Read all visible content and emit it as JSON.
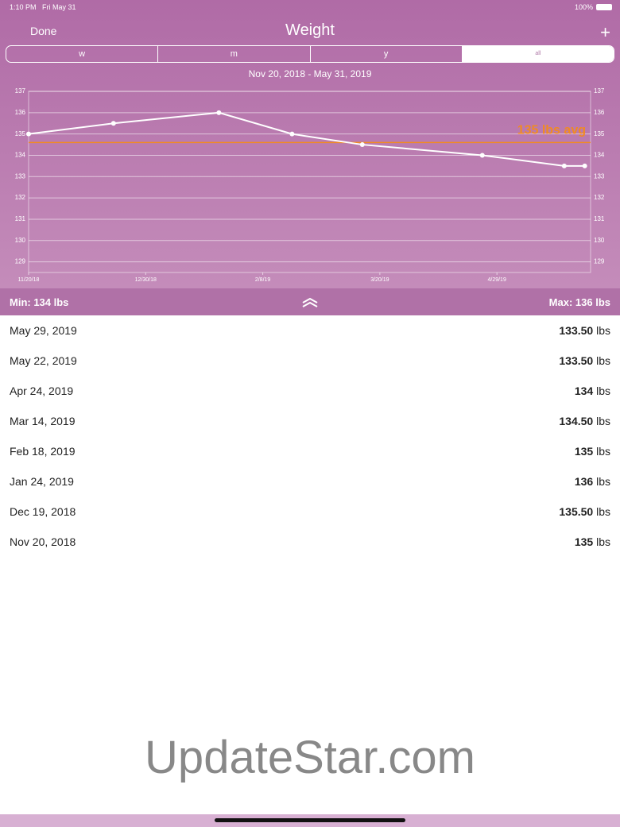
{
  "status_bar": {
    "time": "1:10 PM",
    "date": "Fri May 31",
    "battery": "100%"
  },
  "nav": {
    "left": "Done",
    "title": "Weight",
    "right": "+"
  },
  "segments": [
    "w",
    "m",
    "y",
    "all"
  ],
  "date_range": "Nov 20, 2018 - May 31, 2019",
  "chart_data": {
    "type": "line",
    "x": [
      "2018-11-20",
      "2018-12-19",
      "2019-01-24",
      "2019-02-18",
      "2019-03-14",
      "2019-04-24",
      "2019-05-22",
      "2019-05-29"
    ],
    "series": [
      {
        "color": "#ffffff",
        "values": [
          135,
          135.5,
          136,
          135,
          134.5,
          134,
          133.5,
          133.5
        ]
      }
    ],
    "xlim": [
      "2018-11-20",
      "2019-05-31"
    ],
    "xticks": [
      {
        "value": "2018-11-20",
        "label": "11/20/18"
      },
      {
        "value": "2018-12-30",
        "label": "12/30/18"
      },
      {
        "value": "2019-02-08",
        "label": "2/8/19"
      },
      {
        "value": "2019-03-20",
        "label": "3/20/19"
      },
      {
        "value": "2019-04-29",
        "label": "4/29/19"
      }
    ],
    "ylim": [
      128.5,
      137
    ],
    "yticks": [
      129,
      130,
      131,
      132,
      133,
      134,
      135,
      136,
      137
    ],
    "grid": true,
    "average": {
      "value": 134.6,
      "label": "135 lbs avg",
      "color": "#f08a24"
    }
  },
  "summary": {
    "min": "Min: 134 lbs",
    "max": "Max: 136 lbs"
  },
  "entries": [
    {
      "date": "May 29, 2019",
      "value": "133.50",
      "unit": "lbs"
    },
    {
      "date": "May 22, 2019",
      "value": "133.50",
      "unit": "lbs"
    },
    {
      "date": "Apr 24, 2019",
      "value": "134",
      "unit": "lbs"
    },
    {
      "date": "Mar 14, 2019",
      "value": "134.50",
      "unit": "lbs"
    },
    {
      "date": "Feb 18, 2019",
      "value": "135",
      "unit": "lbs"
    },
    {
      "date": "Jan 24, 2019",
      "value": "136",
      "unit": "lbs"
    },
    {
      "date": "Dec 19, 2018",
      "value": "135.50",
      "unit": "lbs"
    },
    {
      "date": "Nov 20, 2018",
      "value": "135",
      "unit": "lbs"
    }
  ],
  "watermark": "UpdateStar.com"
}
